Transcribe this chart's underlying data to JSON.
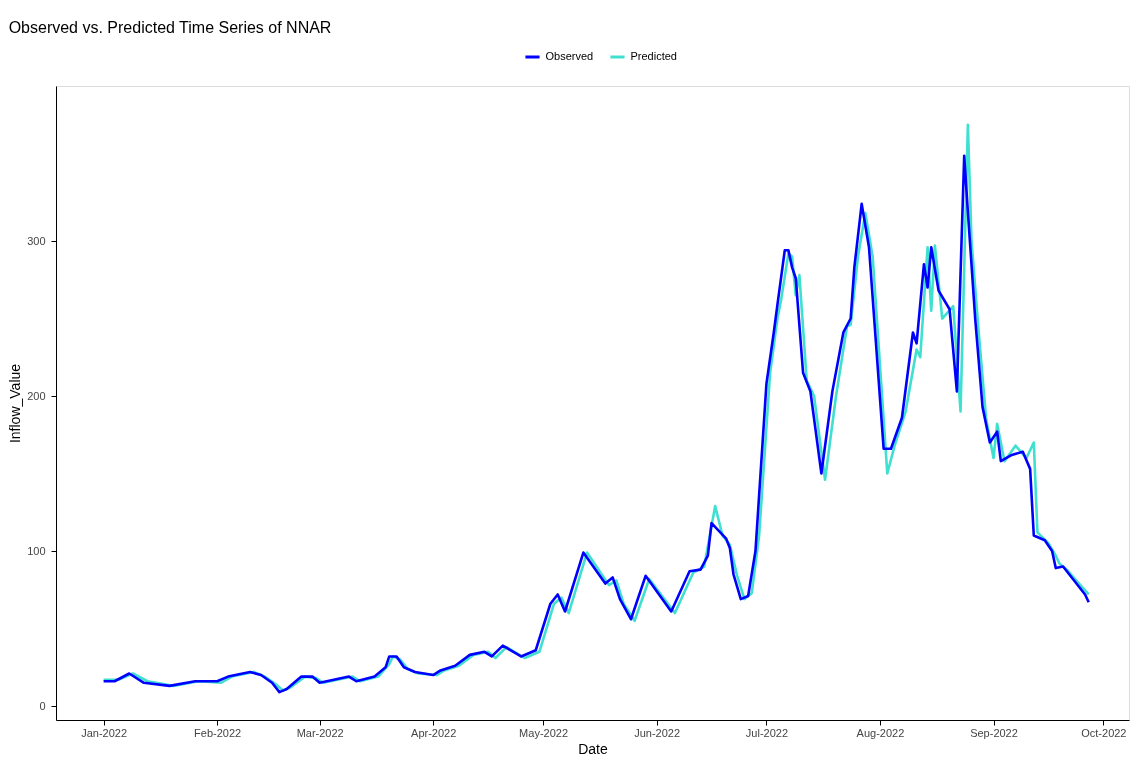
{
  "chart_data": {
    "type": "line",
    "title": "Observed vs. Predicted Time Series of NNAR",
    "xlabel": "Date",
    "ylabel": "Inflow_Value",
    "xlim": [
      "2021-12-19",
      "2022-10-08"
    ],
    "ylim": [
      -9,
      400
    ],
    "xticks": [
      {
        "value": "2022-01-01",
        "label": "Jan-2022"
      },
      {
        "value": "2022-02-01",
        "label": "Feb-2022"
      },
      {
        "value": "2022-03-01",
        "label": "Mar-2022"
      },
      {
        "value": "2022-04-01",
        "label": "Apr-2022"
      },
      {
        "value": "2022-05-01",
        "label": "May-2022"
      },
      {
        "value": "2022-06-01",
        "label": "Jun-2022"
      },
      {
        "value": "2022-07-01",
        "label": "Jul-2022"
      },
      {
        "value": "2022-08-01",
        "label": "Aug-2022"
      },
      {
        "value": "2022-09-01",
        "label": "Sep-2022"
      },
      {
        "value": "2022-10-01",
        "label": "Oct-2022"
      }
    ],
    "yticks": [
      0,
      100,
      200,
      300
    ],
    "grid": false,
    "legend": "top",
    "line_style": "solid",
    "series": [
      {
        "name": "Observed",
        "color": "#0000ff",
        "x": [
          "2022-01-01",
          "2022-01-04",
          "2022-01-08",
          "2022-01-12",
          "2022-01-19",
          "2022-01-26",
          "2022-02-01",
          "2022-02-04",
          "2022-02-10",
          "2022-02-13",
          "2022-02-16",
          "2022-02-18",
          "2022-02-20",
          "2022-02-24",
          "2022-02-27",
          "2022-03-01",
          "2022-03-09",
          "2022-03-11",
          "2022-03-16",
          "2022-03-19",
          "2022-03-20",
          "2022-03-22",
          "2022-03-24",
          "2022-03-27",
          "2022-04-01",
          "2022-04-03",
          "2022-04-07",
          "2022-04-11",
          "2022-04-15",
          "2022-04-17",
          "2022-04-20",
          "2022-04-25",
          "2022-04-29",
          "2022-05-03",
          "2022-05-05",
          "2022-05-07",
          "2022-05-12",
          "2022-05-18",
          "2022-05-20",
          "2022-05-22",
          "2022-05-25",
          "2022-05-29",
          "2022-06-05",
          "2022-06-10",
          "2022-06-13",
          "2022-06-15",
          "2022-06-16",
          "2022-06-20",
          "2022-06-21",
          "2022-06-22",
          "2022-06-24",
          "2022-06-26",
          "2022-06-28",
          "2022-07-01",
          "2022-07-03",
          "2022-07-04",
          "2022-07-06",
          "2022-07-07",
          "2022-07-08",
          "2022-07-09",
          "2022-07-11",
          "2022-07-13",
          "2022-07-16",
          "2022-07-19",
          "2022-07-22",
          "2022-07-24",
          "2022-07-25",
          "2022-07-27",
          "2022-07-29",
          "2022-08-02",
          "2022-08-04",
          "2022-08-07",
          "2022-08-10",
          "2022-08-11",
          "2022-08-13",
          "2022-08-14",
          "2022-08-15",
          "2022-08-17",
          "2022-08-20",
          "2022-08-22",
          "2022-08-24",
          "2022-08-25",
          "2022-08-27",
          "2022-08-29",
          "2022-08-31",
          "2022-09-02",
          "2022-09-03",
          "2022-09-06",
          "2022-09-09",
          "2022-09-11",
          "2022-09-12",
          "2022-09-15",
          "2022-09-17",
          "2022-09-18",
          "2022-09-20",
          "2022-09-23",
          "2022-09-26",
          "2022-09-27"
        ],
        "values": [
          16,
          16,
          21,
          15,
          13,
          16,
          16,
          19,
          22,
          20,
          15,
          9,
          11,
          19,
          19,
          15,
          19,
          16,
          19,
          25,
          32,
          32,
          25,
          22,
          20,
          23,
          26,
          33,
          35,
          32,
          39,
          32,
          36,
          66,
          72,
          61,
          99,
          79,
          83,
          69,
          56,
          84,
          61,
          87,
          88,
          97,
          118,
          108,
          102,
          85,
          69,
          71,
          100,
          208,
          241,
          259,
          294,
          294,
          283,
          276,
          215,
          203,
          150,
          203,
          241,
          250,
          283,
          324,
          296,
          166,
          166,
          186,
          241,
          234,
          285,
          270,
          296,
          268,
          256,
          203,
          355,
          319,
          250,
          193,
          170,
          177,
          158,
          162,
          164,
          153,
          110,
          107,
          100,
          89,
          90,
          81,
          72,
          67
        ]
      },
      {
        "name": "Predicted",
        "color": "#40e0d0",
        "x": [
          "2022-01-01",
          "2022-01-05",
          "2022-01-09",
          "2022-01-13",
          "2022-01-20",
          "2022-01-27",
          "2022-02-02",
          "2022-02-05",
          "2022-02-11",
          "2022-02-14",
          "2022-02-17",
          "2022-02-19",
          "2022-02-21",
          "2022-02-25",
          "2022-02-28",
          "2022-03-02",
          "2022-03-10",
          "2022-03-12",
          "2022-03-17",
          "2022-03-20",
          "2022-03-21",
          "2022-03-23",
          "2022-03-25",
          "2022-03-28",
          "2022-04-02",
          "2022-04-04",
          "2022-04-08",
          "2022-04-12",
          "2022-04-16",
          "2022-04-18",
          "2022-04-21",
          "2022-04-26",
          "2022-04-30",
          "2022-05-04",
          "2022-05-06",
          "2022-05-08",
          "2022-05-13",
          "2022-05-19",
          "2022-05-21",
          "2022-05-23",
          "2022-05-26",
          "2022-05-30",
          "2022-06-06",
          "2022-06-11",
          "2022-06-14",
          "2022-06-17",
          "2022-06-19",
          "2022-06-21",
          "2022-06-23",
          "2022-06-25",
          "2022-06-27",
          "2022-06-29",
          "2022-07-02",
          "2022-07-04",
          "2022-07-05",
          "2022-07-07",
          "2022-07-08",
          "2022-07-09",
          "2022-07-10",
          "2022-07-12",
          "2022-07-14",
          "2022-07-17",
          "2022-07-20",
          "2022-07-23",
          "2022-07-24",
          "2022-07-26",
          "2022-07-28",
          "2022-07-30",
          "2022-08-03",
          "2022-08-05",
          "2022-08-08",
          "2022-08-11",
          "2022-08-12",
          "2022-08-14",
          "2022-08-15",
          "2022-08-16",
          "2022-08-18",
          "2022-08-21",
          "2022-08-23",
          "2022-08-25",
          "2022-08-26",
          "2022-08-28",
          "2022-08-30",
          "2022-09-01",
          "2022-09-02",
          "2022-09-04",
          "2022-09-07",
          "2022-09-10",
          "2022-09-12",
          "2022-09-13",
          "2022-09-16",
          "2022-09-18",
          "2022-09-19",
          "2022-09-21",
          "2022-09-24",
          "2022-09-27"
        ],
        "values": [
          17,
          17,
          21,
          16,
          13,
          16,
          15,
          19,
          22,
          19,
          14,
          10,
          12,
          19,
          18,
          15,
          19,
          16,
          19,
          27,
          32,
          30,
          24,
          21,
          20,
          23,
          26,
          33,
          35,
          31,
          38,
          31,
          35,
          66,
          70,
          60,
          99,
          78,
          81,
          66,
          55,
          82,
          60,
          86,
          90,
          129,
          110,
          104,
          84,
          69,
          73,
          110,
          215,
          250,
          262,
          292,
          290,
          265,
          278,
          210,
          200,
          146,
          200,
          245,
          246,
          290,
          318,
          290,
          150,
          168,
          190,
          230,
          225,
          296,
          255,
          297,
          250,
          258,
          190,
          375,
          300,
          240,
          185,
          160,
          182,
          158,
          168,
          160,
          170,
          112,
          105,
          97,
          92,
          88,
          80,
          72
        ]
      }
    ]
  }
}
